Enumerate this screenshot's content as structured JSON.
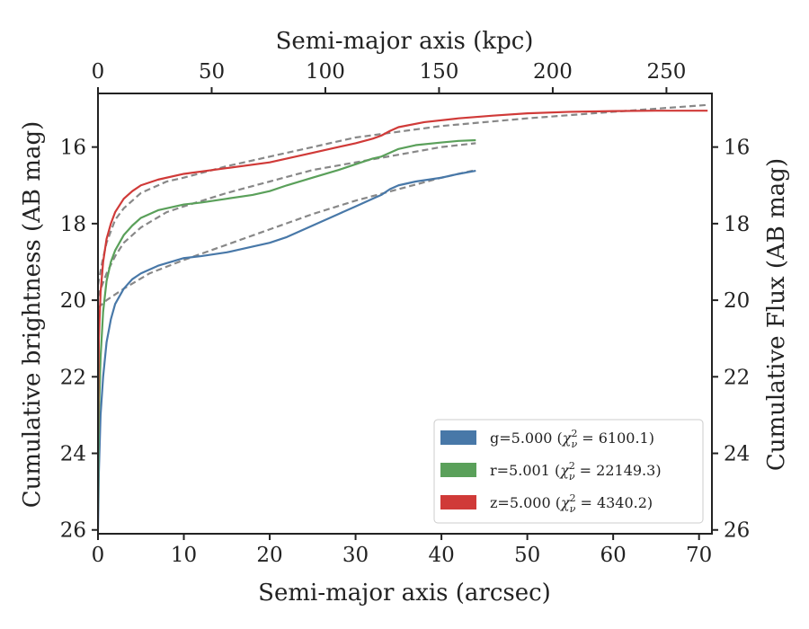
{
  "chart_data": {
    "type": "line",
    "title": "",
    "xlabel": "Semi-major axis (arcsec)",
    "ylabel": "Cumulative brightness (AB mag)",
    "x2label": "Semi-major axis (kpc)",
    "y2label": "Cumulative Flux (AB mag)",
    "xlim": [
      0,
      71.5
    ],
    "ylim": [
      26.1,
      14.6
    ],
    "x2lim": [
      0,
      270
    ],
    "y_inverted": true,
    "x_ticks": [
      "0",
      "10",
      "20",
      "30",
      "40",
      "50",
      "60",
      "70"
    ],
    "x2_ticks": [
      "0",
      "50",
      "100",
      "150",
      "200",
      "250"
    ],
    "y_ticks": [
      "16",
      "18",
      "20",
      "22",
      "24",
      "26"
    ],
    "legend_position": "lower-right",
    "grid": false,
    "series": [
      {
        "name": "g=5.000 (χ²ν = 6100.1)",
        "legend_prefix": "g=5.000 (",
        "legend_chi": "χ",
        "legend_sup": "2",
        "legend_sub": "ν",
        "legend_suffix": " = 6100.1)",
        "color": "#4878a8",
        "x": [
          0,
          0.1,
          0.3,
          0.6,
          1,
          1.5,
          2,
          3,
          4,
          5,
          7,
          10,
          12,
          15,
          18,
          20,
          22,
          25,
          28,
          30,
          32,
          33,
          34,
          35,
          37,
          40,
          42,
          44
        ],
        "y": [
          26,
          24.5,
          23,
          22,
          21.1,
          20.5,
          20.1,
          19.7,
          19.45,
          19.3,
          19.1,
          18.9,
          18.85,
          18.75,
          18.6,
          18.5,
          18.35,
          18.05,
          17.75,
          17.55,
          17.35,
          17.25,
          17.1,
          17.0,
          16.9,
          16.8,
          16.7,
          16.62
        ]
      },
      {
        "name": "r=5.001 (χ²ν = 22149.3)",
        "legend_prefix": "r=5.001 (",
        "legend_chi": "χ",
        "legend_sup": "2",
        "legend_sub": "ν",
        "legend_suffix": " = 22149.3)",
        "color": "#5aa05a",
        "x": [
          0,
          0.1,
          0.3,
          0.6,
          1,
          1.5,
          2,
          3,
          4,
          5,
          7,
          10,
          12,
          15,
          18,
          20,
          22,
          25,
          28,
          30,
          32,
          33,
          34,
          35,
          37,
          40,
          42,
          44
        ],
        "y": [
          25.5,
          23,
          21.5,
          20.3,
          19.5,
          19.0,
          18.7,
          18.3,
          18.05,
          17.85,
          17.65,
          17.5,
          17.45,
          17.35,
          17.25,
          17.15,
          17.0,
          16.8,
          16.6,
          16.45,
          16.3,
          16.25,
          16.15,
          16.05,
          15.95,
          15.88,
          15.84,
          15.82
        ]
      },
      {
        "name": "z=5.000 (χ²ν = 4340.2)",
        "legend_prefix": "z=5.000 (",
        "legend_chi": "χ",
        "legend_sup": "2",
        "legend_sub": "ν",
        "legend_suffix": " = 4340.2)",
        "color": "#d03a38",
        "x": [
          0,
          0.1,
          0.3,
          0.6,
          1,
          1.5,
          2,
          3,
          4,
          5,
          7,
          10,
          15,
          20,
          25,
          30,
          32,
          33,
          34,
          35,
          38,
          42,
          46,
          50,
          55,
          60,
          65,
          71
        ],
        "y": [
          23.5,
          21,
          19.8,
          19.0,
          18.4,
          18.0,
          17.7,
          17.35,
          17.15,
          17.0,
          16.85,
          16.7,
          16.55,
          16.4,
          16.15,
          15.9,
          15.78,
          15.7,
          15.58,
          15.48,
          15.35,
          15.25,
          15.18,
          15.12,
          15.08,
          15.06,
          15.05,
          15.05
        ]
      }
    ],
    "fits": [
      {
        "color": "#888888",
        "x": [
          0,
          1,
          3,
          6,
          10,
          15,
          20,
          25,
          30,
          35,
          40,
          44
        ],
        "y": [
          20.2,
          20.0,
          19.7,
          19.3,
          18.95,
          18.55,
          18.15,
          17.75,
          17.4,
          17.1,
          16.8,
          16.6
        ]
      },
      {
        "color": "#888888",
        "x": [
          0,
          1,
          2,
          3,
          5,
          8,
          10,
          15,
          20,
          25,
          30,
          35,
          40,
          44
        ],
        "y": [
          19.9,
          19.3,
          18.85,
          18.5,
          18.1,
          17.7,
          17.55,
          17.2,
          16.9,
          16.6,
          16.4,
          16.2,
          16.0,
          15.9
        ]
      },
      {
        "color": "#888888",
        "x": [
          0,
          0.5,
          1,
          2,
          3,
          5,
          8,
          10,
          15,
          20,
          25,
          30,
          40,
          50,
          60,
          71
        ],
        "y": [
          19.6,
          19.0,
          18.5,
          17.9,
          17.6,
          17.2,
          16.9,
          16.8,
          16.5,
          16.25,
          16.0,
          15.75,
          15.45,
          15.25,
          15.08,
          14.9
        ]
      }
    ]
  }
}
